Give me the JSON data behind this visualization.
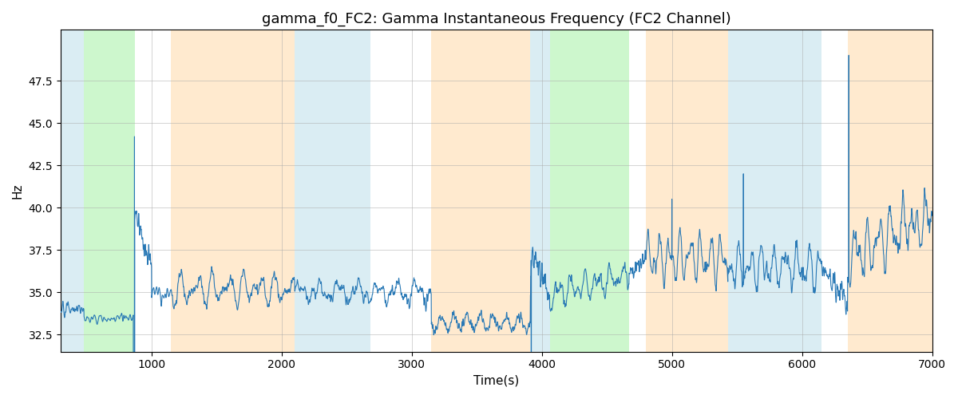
{
  "title": "gamma_f0_FC2: Gamma Instantaneous Frequency (FC2 Channel)",
  "xlabel": "Time(s)",
  "ylabel": "Hz",
  "xlim": [
    300,
    7000
  ],
  "ylim": [
    31.5,
    50.5
  ],
  "line_color": "#2878b5",
  "line_width": 0.8,
  "bg_color": "#ffffff",
  "grid_color": "#aaaaaa",
  "title_fontsize": 13,
  "label_fontsize": 11,
  "tick_fontsize": 10,
  "bands": [
    {
      "xmin": 300,
      "xmax": 480,
      "color": "#add8e6",
      "alpha": 0.45
    },
    {
      "xmin": 480,
      "xmax": 870,
      "color": "#90ee90",
      "alpha": 0.45
    },
    {
      "xmin": 1150,
      "xmax": 2100,
      "color": "#ffd7a0",
      "alpha": 0.5
    },
    {
      "xmin": 2100,
      "xmax": 2680,
      "color": "#add8e6",
      "alpha": 0.45
    },
    {
      "xmin": 3150,
      "xmax": 3910,
      "color": "#ffd7a0",
      "alpha": 0.5
    },
    {
      "xmin": 3910,
      "xmax": 4060,
      "color": "#add8e6",
      "alpha": 0.45
    },
    {
      "xmin": 4060,
      "xmax": 4670,
      "color": "#90ee90",
      "alpha": 0.45
    },
    {
      "xmin": 4800,
      "xmax": 5430,
      "color": "#ffd7a0",
      "alpha": 0.5
    },
    {
      "xmin": 5430,
      "xmax": 6150,
      "color": "#add8e6",
      "alpha": 0.45
    },
    {
      "xmin": 6350,
      "xmax": 7000,
      "color": "#ffd7a0",
      "alpha": 0.5
    }
  ],
  "yticks": [
    32.5,
    35.0,
    37.5,
    40.0,
    42.5,
    45.0,
    47.5
  ],
  "xticks": [
    1000,
    2000,
    3000,
    4000,
    5000,
    6000,
    7000
  ]
}
